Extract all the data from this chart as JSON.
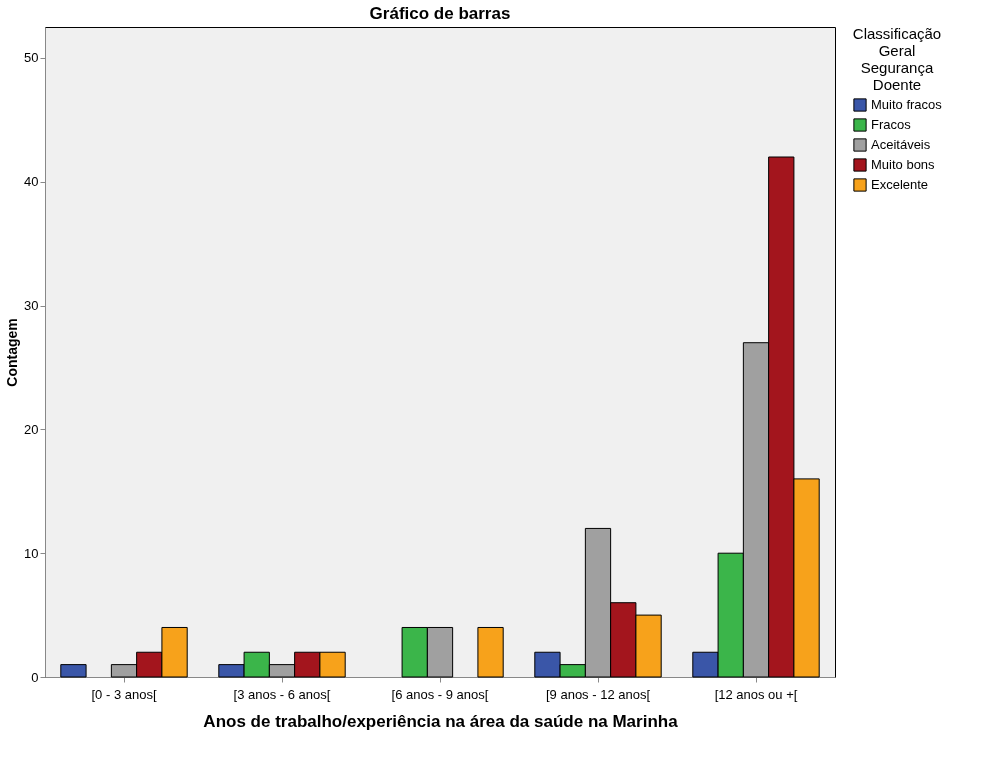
{
  "chart_data": {
    "type": "bar",
    "title": "Gráfico de barras",
    "xlabel": "Anos de trabalho/experiência na área da saúde na Marinha",
    "ylabel": "Contagem",
    "legend_title": "Classificação Geral Segurança Doente",
    "categories": [
      "[0  - 3 anos[",
      "[3 anos - 6 anos[",
      "[6 anos - 9 anos[",
      "[9 anos - 12 anos[",
      "[12 anos ou +["
    ],
    "series": [
      {
        "name": "Muito fracos",
        "color": "#3a56a8",
        "values": [
          1,
          1,
          null,
          2,
          2
        ]
      },
      {
        "name": "Fracos",
        "color": "#3bb54a",
        "values": [
          null,
          2,
          4,
          1,
          10
        ]
      },
      {
        "name": "Aceitáveis",
        "color": "#a0a0a0",
        "values": [
          1,
          1,
          4,
          12,
          27
        ]
      },
      {
        "name": "Muito bons",
        "color": "#a3151d",
        "values": [
          2,
          2,
          null,
          6,
          42
        ]
      },
      {
        "name": "Excelente",
        "color": "#f7a21b",
        "values": [
          4,
          2,
          4,
          5,
          16
        ]
      }
    ],
    "ylim": [
      0,
      52.5
    ],
    "yticks": [
      0,
      10,
      20,
      30,
      40,
      50
    ],
    "grid": false,
    "legend": "right"
  }
}
